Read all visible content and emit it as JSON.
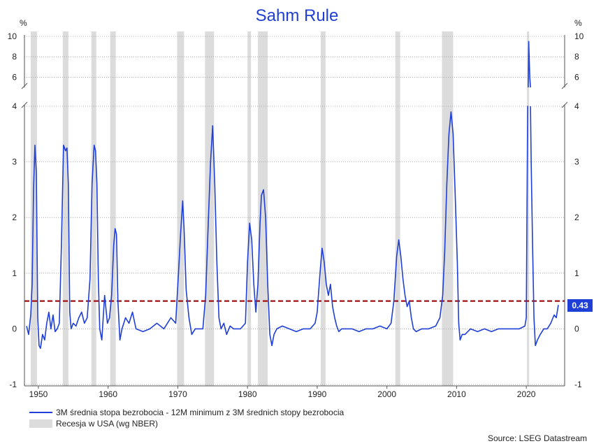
{
  "chart_data": {
    "type": "line",
    "title": "Sahm Rule",
    "unit_left": "%",
    "unit_right": "%",
    "x_ticks": [
      "1950",
      "1960",
      "1970",
      "1980",
      "1990",
      "2000",
      "2010",
      "2020"
    ],
    "y_ticks_lower": [
      "-1",
      "0",
      "1",
      "2",
      "3",
      "4"
    ],
    "y_ticks_upper": [
      "6",
      "8",
      "10"
    ],
    "xlim": [
      1948.0,
      2025.5
    ],
    "ylim_lower": [
      -1,
      4
    ],
    "ylim_upper": [
      5,
      10
    ],
    "axis_break": "between 4 and 5",
    "grid": true,
    "legend_position": "bottom-left",
    "threshold": {
      "value": 0.5,
      "style": "dashed",
      "color": "#a01010"
    },
    "last_value_label": "0.43",
    "colors": {
      "series": "#1f3fd6",
      "recession": "#dcdcdc",
      "threshold": "#a01010",
      "value_box": "#1f3fd6",
      "title": "#1f3fd6"
    },
    "recessions": [
      [
        1948.9,
        1949.8
      ],
      [
        1953.5,
        1954.3
      ],
      [
        1957.6,
        1958.3
      ],
      [
        1960.3,
        1961.1
      ],
      [
        1969.9,
        1970.9
      ],
      [
        1973.9,
        1975.2
      ],
      [
        1980.0,
        1980.5
      ],
      [
        1981.5,
        1982.9
      ],
      [
        1990.5,
        1991.2
      ],
      [
        2001.2,
        2001.9
      ],
      [
        2007.9,
        2009.5
      ],
      [
        2020.1,
        2020.4
      ]
    ],
    "series": [
      {
        "name": "3M średnia stopa bezrobocia - 12M minimum z 3M średnich stopy bezrobocia",
        "x": [
          1948.3,
          1948.6,
          1948.9,
          1949.1,
          1949.3,
          1949.5,
          1949.7,
          1949.9,
          1950.1,
          1950.3,
          1950.6,
          1950.9,
          1951.2,
          1951.5,
          1951.8,
          1952.1,
          1952.4,
          1952.7,
          1953.0,
          1953.3,
          1953.6,
          1953.9,
          1954.1,
          1954.3,
          1954.5,
          1954.7,
          1955.0,
          1955.4,
          1955.8,
          1956.2,
          1956.6,
          1957.0,
          1957.4,
          1957.7,
          1958.0,
          1958.2,
          1958.4,
          1958.6,
          1958.8,
          1959.1,
          1959.5,
          1959.9,
          1960.2,
          1960.5,
          1960.8,
          1961.0,
          1961.2,
          1961.4,
          1961.7,
          1962.0,
          1962.5,
          1963.0,
          1963.5,
          1964.0,
          1965.0,
          1966.0,
          1967.0,
          1968.0,
          1969.0,
          1969.7,
          1970.1,
          1970.4,
          1970.7,
          1970.9,
          1971.2,
          1971.6,
          1972.0,
          1972.5,
          1973.0,
          1973.6,
          1974.0,
          1974.4,
          1974.7,
          1975.0,
          1975.3,
          1975.6,
          1975.9,
          1976.2,
          1976.6,
          1977.0,
          1977.5,
          1978.0,
          1979.0,
          1979.7,
          1980.0,
          1980.3,
          1980.6,
          1980.9,
          1981.2,
          1981.5,
          1981.8,
          1982.0,
          1982.3,
          1982.6,
          1982.9,
          1983.2,
          1983.5,
          1983.8,
          1984.2,
          1985.0,
          1986.0,
          1987.0,
          1988.0,
          1989.0,
          1989.7,
          1990.0,
          1990.4,
          1990.7,
          1991.0,
          1991.3,
          1991.6,
          1991.9,
          1992.2,
          1992.5,
          1992.8,
          1993.1,
          1993.5,
          1994.0,
          1995.0,
          1996.0,
          1997.0,
          1998.0,
          1999.0,
          2000.0,
          2000.6,
          2001.0,
          2001.4,
          2001.7,
          2002.0,
          2002.3,
          2002.6,
          2002.9,
          2003.2,
          2003.5,
          2003.8,
          2004.2,
          2005.0,
          2006.0,
          2007.0,
          2007.6,
          2008.0,
          2008.3,
          2008.6,
          2008.9,
          2009.2,
          2009.5,
          2009.8,
          2010.1,
          2010.3,
          2010.5,
          2010.8,
          2011.2,
          2012.0,
          2013.0,
          2014.0,
          2015.0,
          2016.0,
          2017.0,
          2018.0,
          2019.0,
          2019.8,
          2020.0,
          2020.2,
          2020.35,
          2020.5,
          2020.7,
          2020.9,
          2021.1,
          2021.3,
          2021.6,
          2022.0,
          2022.5,
          2023.0,
          2023.5,
          2024.0,
          2024.3,
          2024.6
        ],
        "y": [
          0.05,
          -0.1,
          0.25,
          0.8,
          2.5,
          3.3,
          2.8,
          0.2,
          -0.3,
          -0.35,
          -0.1,
          -0.2,
          0.1,
          0.3,
          0.0,
          0.25,
          -0.05,
          0.0,
          0.1,
          1.5,
          3.3,
          3.2,
          3.25,
          2.6,
          0.3,
          0.0,
          0.1,
          0.05,
          0.2,
          0.3,
          0.1,
          0.2,
          0.9,
          2.6,
          3.3,
          3.2,
          2.6,
          0.9,
          0.0,
          -0.2,
          0.6,
          0.1,
          0.2,
          0.6,
          1.5,
          1.8,
          1.7,
          0.5,
          -0.2,
          0.0,
          0.2,
          0.1,
          0.3,
          0.0,
          -0.05,
          0.0,
          0.1,
          0.0,
          0.2,
          0.1,
          1.0,
          1.7,
          2.3,
          1.8,
          0.7,
          0.2,
          -0.1,
          0.0,
          0.0,
          0.0,
          0.6,
          2.0,
          3.0,
          3.65,
          2.6,
          1.2,
          0.2,
          0.0,
          0.1,
          -0.1,
          0.05,
          0.0,
          0.0,
          0.1,
          1.2,
          1.9,
          1.6,
          0.8,
          0.3,
          0.8,
          1.9,
          2.4,
          2.5,
          2.0,
          0.8,
          -0.1,
          -0.3,
          -0.1,
          0.0,
          0.05,
          0.0,
          -0.05,
          0.0,
          0.0,
          0.1,
          0.3,
          1.0,
          1.45,
          1.2,
          0.8,
          0.6,
          0.8,
          0.4,
          0.2,
          0.05,
          -0.05,
          0.0,
          0.0,
          0.0,
          -0.05,
          0.0,
          0.0,
          0.05,
          0.0,
          0.1,
          0.5,
          1.3,
          1.6,
          1.3,
          0.9,
          0.6,
          0.4,
          0.5,
          0.2,
          0.0,
          -0.05,
          0.0,
          0.0,
          0.05,
          0.2,
          0.6,
          1.4,
          2.6,
          3.5,
          3.9,
          3.5,
          2.4,
          1.2,
          0.1,
          -0.2,
          -0.1,
          -0.1,
          0.0,
          -0.05,
          0.0,
          -0.05,
          0.0,
          0.0,
          0.0,
          0.0,
          0.05,
          0.2,
          4.0,
          9.5,
          6.0,
          3.0,
          1.5,
          0.2,
          -0.3,
          -0.2,
          -0.1,
          0.0,
          0.0,
          0.1,
          0.25,
          0.2,
          0.43
        ]
      },
      {
        "name": "Recesja w USA (wg NBER)"
      }
    ],
    "source": "Source: LSEG Datastream"
  }
}
